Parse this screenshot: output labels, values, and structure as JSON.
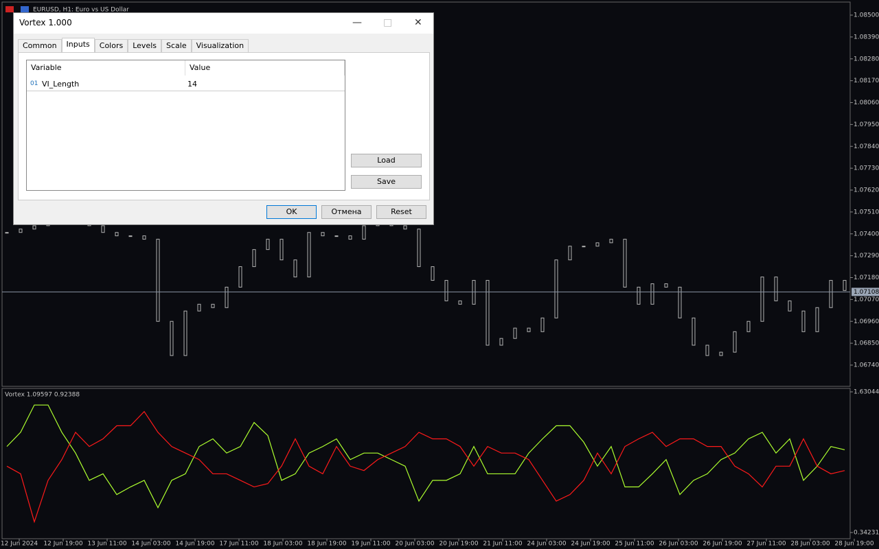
{
  "window": {
    "symbol_label": "EURUSD, H1:  Euro vs US Dollar"
  },
  "dialog": {
    "title": "Vortex 1.000",
    "tabs": [
      "Common",
      "Inputs",
      "Colors",
      "Levels",
      "Scale",
      "Visualization"
    ],
    "table": {
      "headers": [
        "Variable",
        "Value"
      ],
      "rows": [
        [
          "VI_Length",
          14
        ]
      ],
      "row_icon": "01"
    },
    "side_buttons": [
      "Load",
      "Save"
    ],
    "buttons": [
      "OK",
      "Отмена",
      "Reset"
    ]
  },
  "price_chart": {
    "type": "candlestick",
    "color": "#b4b4b4",
    "closes": [
      1.07407,
      1.07424,
      1.07441,
      1.07476,
      1.07476,
      1.07476,
      1.07441,
      1.07407,
      1.0739,
      1.0739,
      1.07373,
      1.0696,
      1.06788,
      1.07012,
      1.07046,
      1.07029,
      1.07132,
      1.07235,
      1.07321,
      1.07373,
      1.07269,
      1.07183,
      1.07407,
      1.0739,
      1.0739,
      1.07373,
      1.07441,
      1.07458,
      1.07441,
      1.07424,
      1.07235,
      1.07166,
      1.07063,
      1.07046,
      1.07166,
      1.0684,
      1.06874,
      1.06926,
      1.06908,
      1.06977,
      1.07269,
      1.07338,
      1.07338,
      1.07355,
      1.07373,
      1.07132,
      1.07046,
      1.07149,
      1.07132,
      1.06977,
      1.0684,
      1.06788,
      1.06805,
      1.06908,
      1.0696,
      1.07183,
      1.07063,
      1.07012,
      1.06908,
      1.07029,
      1.07166,
      1.07115
    ],
    "ylim": [
      1.0674,
      1.085
    ],
    "yticks": [
      {
        "value": 1.085,
        "label": "1.08500"
      },
      {
        "value": 1.0839,
        "label": "1.08390"
      },
      {
        "value": 1.0828,
        "label": "1.08280"
      },
      {
        "value": 1.0817,
        "label": "1.08170"
      },
      {
        "value": 1.0806,
        "label": "1.08060"
      },
      {
        "value": 1.0795,
        "label": "1.07950"
      },
      {
        "value": 1.0784,
        "label": "1.07840"
      },
      {
        "value": 1.0773,
        "label": "1.07730"
      },
      {
        "value": 1.0762,
        "label": "1.07620"
      },
      {
        "value": 1.0751,
        "label": "1.07510"
      },
      {
        "value": 1.074,
        "label": "1.07400"
      },
      {
        "value": 1.0729,
        "label": "1.07290"
      },
      {
        "value": 1.0718,
        "label": "1.07180"
      },
      {
        "value": 1.0707,
        "label": "1.07070"
      },
      {
        "value": 1.0696,
        "label": "1.06960"
      },
      {
        "value": 1.0685,
        "label": "1.06850"
      },
      {
        "value": 1.0674,
        "label": "1.06740"
      }
    ],
    "current_price": 1.07108,
    "x_labels": [
      "12 Jun 2024",
      "12 Jun 19:00",
      "13 Jun 11:00",
      "14 Jun 03:00",
      "14 Jun 19:00",
      "17 Jun 11:00",
      "18 Jun 03:00",
      "18 Jun 19:00",
      "19 Jun 11:00",
      "20 Jun 03:00",
      "20 Jun 19:00",
      "21 Jun 11:00",
      "24 Jun 03:00",
      "24 Jun 19:00",
      "25 Jun 11:00",
      "26 Jun 03:00",
      "26 Jun 19:00",
      "27 Jun 11:00",
      "28 Jun 03:00",
      "28 Jun 19:00"
    ]
  },
  "indicator": {
    "type": "line",
    "label": "Vortex 1.09597 0.92388",
    "ylim": [
      0.34231,
      1.63044
    ],
    "yticks": [
      0.34231,
      1.63044
    ],
    "series": [
      {
        "color": "#adff2f",
        "values": [
          1.13,
          1.26,
          1.51,
          1.51,
          1.26,
          1.07,
          0.82,
          0.88,
          0.69,
          0.76,
          0.82,
          0.57,
          0.82,
          0.88,
          1.13,
          1.2,
          1.07,
          1.13,
          1.35,
          1.23,
          0.82,
          0.88,
          1.07,
          1.13,
          1.2,
          1.01,
          1.07,
          1.07,
          1.01,
          0.95,
          0.63,
          0.82,
          0.82,
          0.88,
          1.13,
          0.88,
          0.88,
          0.88,
          1.07,
          1.2,
          1.32,
          1.32,
          1.17,
          0.95,
          1.13,
          0.76,
          0.76,
          0.88,
          1.01,
          0.69,
          0.82,
          0.88,
          1.01,
          1.07,
          1.2,
          1.26,
          1.07,
          1.2,
          0.82,
          0.95,
          1.13,
          1.1
        ]
      },
      {
        "color": "#ff1a1a",
        "values": [
          0.95,
          0.88,
          0.44,
          0.82,
          1.01,
          1.26,
          1.13,
          1.2,
          1.32,
          1.32,
          1.45,
          1.26,
          1.13,
          1.07,
          1.01,
          0.88,
          0.88,
          0.82,
          0.76,
          0.79,
          0.95,
          1.2,
          0.95,
          0.88,
          1.13,
          0.95,
          0.91,
          1.01,
          1.07,
          1.13,
          1.26,
          1.2,
          1.2,
          1.13,
          0.95,
          1.13,
          1.07,
          1.07,
          1.01,
          0.82,
          0.63,
          0.69,
          0.82,
          1.07,
          0.88,
          1.13,
          1.2,
          1.26,
          1.13,
          1.2,
          1.2,
          1.13,
          1.13,
          0.95,
          0.88,
          0.76,
          0.95,
          0.95,
          1.2,
          0.95,
          0.88,
          0.91
        ]
      }
    ]
  }
}
